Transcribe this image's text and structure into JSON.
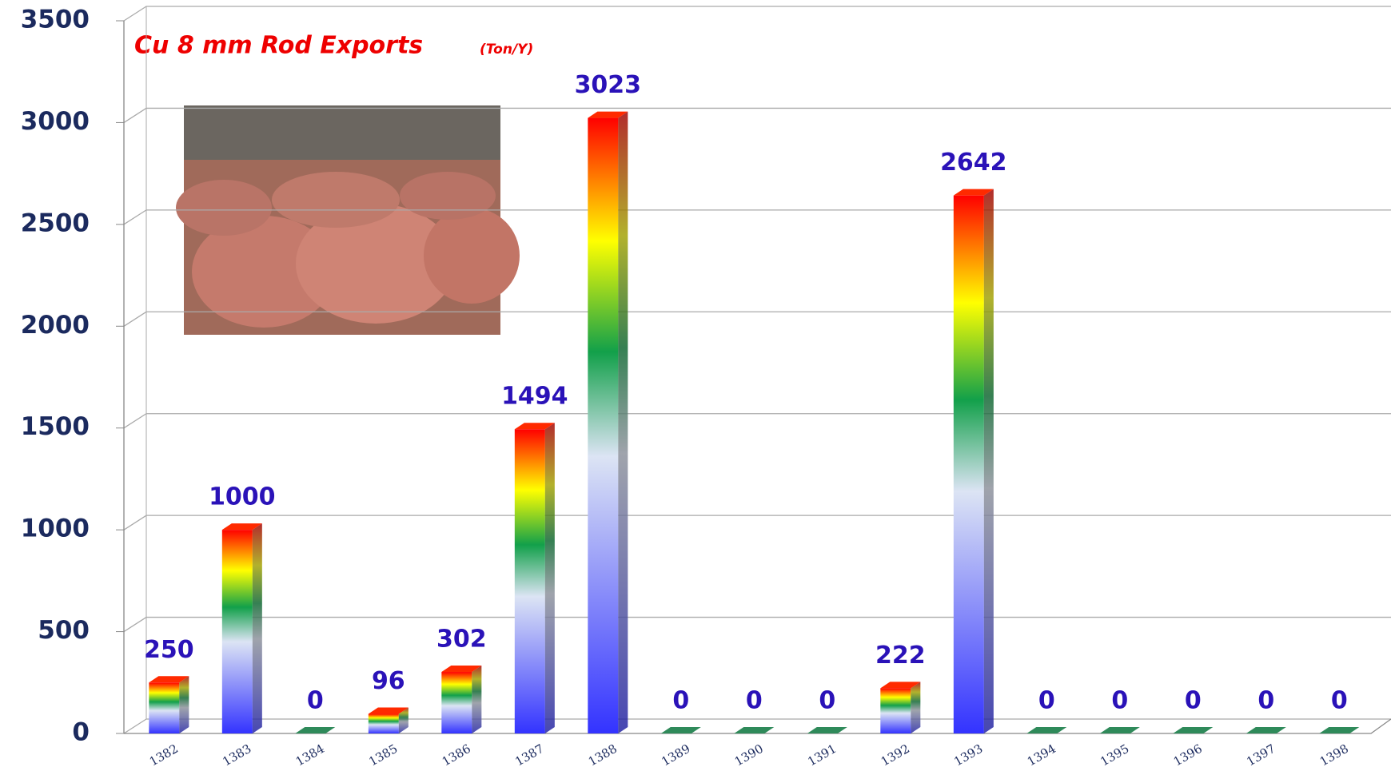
{
  "chart_data": {
    "type": "bar3d",
    "title": "Cu 8 mm Rod Exports",
    "unit": "(Ton/Y)",
    "categories": [
      "1382",
      "1383",
      "1384",
      "1385",
      "1386",
      "1387",
      "1388",
      "1389",
      "1390",
      "1391",
      "1392",
      "1393",
      "1394",
      "1395",
      "1396",
      "1397",
      "1398"
    ],
    "values": [
      250,
      1000,
      0,
      96,
      302,
      1494,
      3023,
      0,
      0,
      0,
      222,
      2642,
      0,
      0,
      0,
      0,
      0
    ],
    "gradient": [
      "#3333ff",
      "#dce4f4",
      "#12a04a",
      "#ffff00",
      "#ff0000"
    ],
    "ylim": [
      0,
      3500
    ],
    "yticks": [
      0,
      500,
      1000,
      1500,
      2000,
      2500,
      3000,
      3500
    ],
    "grid": true
  }
}
